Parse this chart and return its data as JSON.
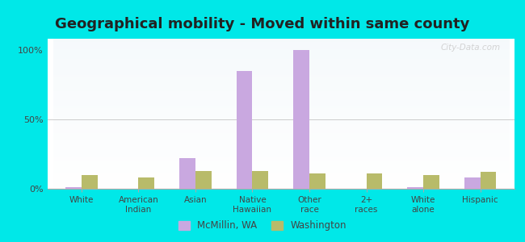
{
  "title": "Geographical mobility - Moved within same county",
  "categories": [
    "White",
    "American\nIndian",
    "Asian",
    "Native\nHawaiian",
    "Other\nrace",
    "2+\nraces",
    "White\nalone",
    "Hispanic"
  ],
  "mcmillin_values": [
    1,
    0,
    22,
    85,
    100,
    0,
    1,
    8
  ],
  "washington_values": [
    10,
    8,
    13,
    13,
    11,
    11,
    10,
    12
  ],
  "mcmillin_color": "#c9a8e0",
  "washington_color": "#b8bb6a",
  "background_color": "#00e8e8",
  "ylim": [
    0,
    108
  ],
  "yticks": [
    0,
    50,
    100
  ],
  "ytick_labels": [
    "0%",
    "50%",
    "100%"
  ],
  "legend_mcmillin": "McMillin, WA",
  "legend_washington": "Washington",
  "title_fontsize": 13,
  "bar_width": 0.28
}
